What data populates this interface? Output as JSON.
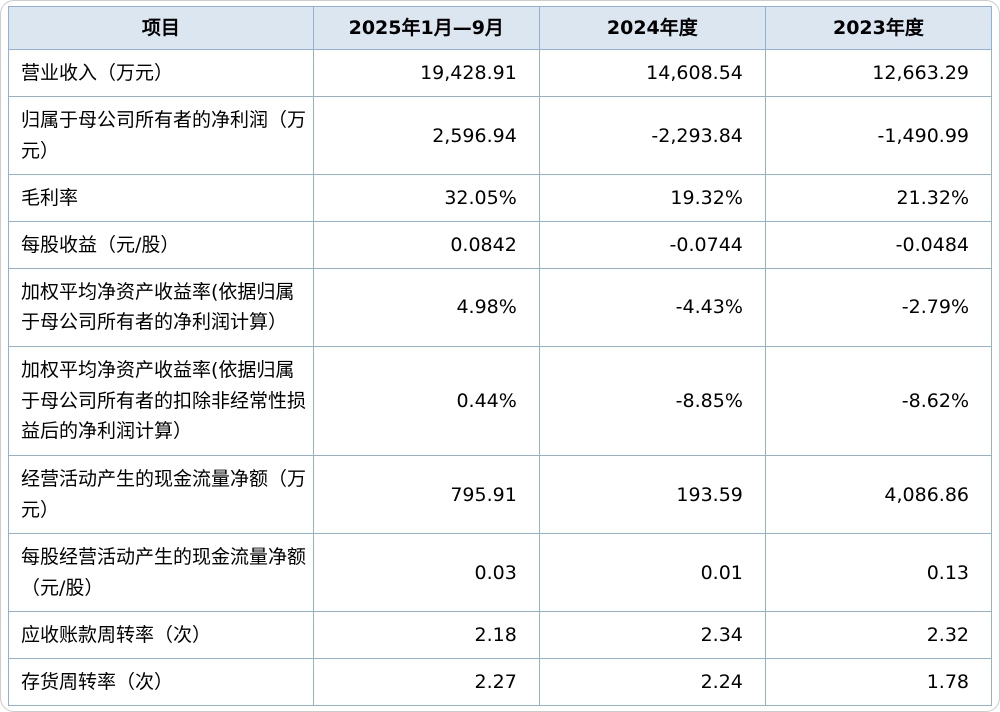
{
  "colors": {
    "header_bg": "#dce6f1",
    "border": "#94b0d2",
    "text": "#000000",
    "page_bg": "#ffffff"
  },
  "table": {
    "headers": [
      "项目",
      "2025年1月—9月",
      "2024年度",
      "2023年度"
    ],
    "rows": [
      {
        "item": "营业收入（万元）",
        "values": [
          "19,428.91",
          "14,608.54",
          "12,663.29"
        ]
      },
      {
        "item": "归属于母公司所有者的净利润（万元）",
        "values": [
          "2,596.94",
          "-2,293.84",
          "-1,490.99"
        ]
      },
      {
        "item": "毛利率",
        "values": [
          "32.05%",
          "19.32%",
          "21.32%"
        ]
      },
      {
        "item": "每股收益（元/股）",
        "values": [
          "0.0842",
          "-0.0744",
          "-0.0484"
        ]
      },
      {
        "item": "加权平均净资产收益率(依据归属于母公司所有者的净利润计算）",
        "values": [
          "4.98%",
          "-4.43%",
          "-2.79%"
        ]
      },
      {
        "item": "加权平均净资产收益率(依据归属于母公司所有者的扣除非经常性损益后的净利润计算）",
        "values": [
          "0.44%",
          "-8.85%",
          "-8.62%"
        ]
      },
      {
        "item": "经营活动产生的现金流量净额（万元）",
        "values": [
          "795.91",
          "193.59",
          "4,086.86"
        ]
      },
      {
        "item": "每股经营活动产生的现金流量净额（元/股）",
        "values": [
          "0.03",
          "0.01",
          "0.13"
        ]
      },
      {
        "item": "应收账款周转率（次）",
        "values": [
          "2.18",
          "2.34",
          "2.32"
        ]
      },
      {
        "item": "存货周转率（次）",
        "values": [
          "2.27",
          "2.24",
          "1.78"
        ]
      }
    ]
  }
}
